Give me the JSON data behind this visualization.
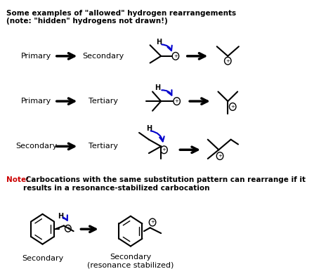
{
  "title_line1": "Some examples of \"allowed\" hydrogen rearrangements",
  "title_line2": "(note: \"hidden\" hydrogens not drawn!)",
  "row1_left": "Primary",
  "row1_right": "Secondary",
  "row2_left": "Primary",
  "row2_right": "Tertiary",
  "row3_left": "Secondary",
  "row3_right": "Tertiary",
  "note_red": "Note:",
  "note_black": " Carbocations with the same substitution pattern can rearrange if it\nresults in a resonance-stabilized carbocation",
  "bottom_left": "Secondary",
  "bottom_right": "Secondary\n(resonance stabilized)",
  "bg_color": "#ffffff",
  "text_color": "#000000",
  "arrow_color": "#0000cc",
  "note_color": "#cc0000",
  "bond_color": "#000000",
  "plus_color": "#000000"
}
